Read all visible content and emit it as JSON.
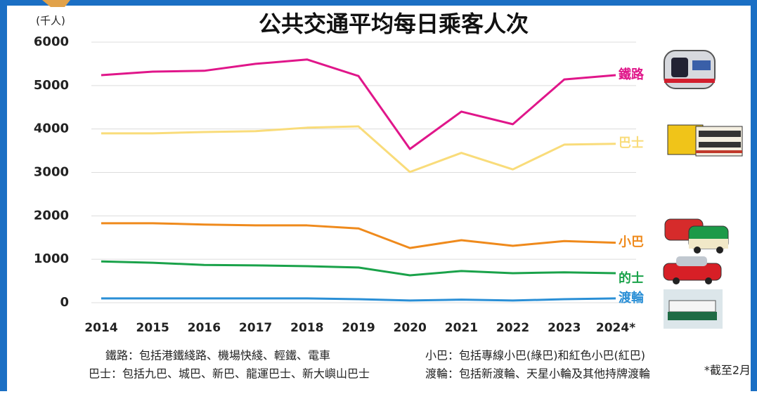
{
  "chart_data": {
    "type": "line",
    "title": "公共交通平均每日乘客人次",
    "unit": "(千人)",
    "categories": [
      "2014",
      "2015",
      "2016",
      "2017",
      "2018",
      "2019",
      "2020",
      "2021",
      "2022",
      "2023",
      "2024*"
    ],
    "series": [
      {
        "name": "鐵路",
        "color": "#e0168a",
        "values": [
          5240,
          5320,
          5340,
          5500,
          5600,
          5220,
          3540,
          4400,
          4110,
          5140,
          5240
        ]
      },
      {
        "name": "巴士",
        "color": "#f9dc7a",
        "values": [
          3900,
          3900,
          3930,
          3950,
          4030,
          4060,
          3010,
          3450,
          3070,
          3640,
          3660
        ]
      },
      {
        "name": "小巴",
        "color": "#ef8a1c",
        "values": [
          1830,
          1830,
          1800,
          1780,
          1780,
          1710,
          1260,
          1440,
          1310,
          1420,
          1380
        ]
      },
      {
        "name": "的士",
        "color": "#1aa24a",
        "values": [
          950,
          920,
          870,
          860,
          840,
          810,
          630,
          730,
          680,
          700,
          680
        ]
      },
      {
        "name": "渡輪",
        "color": "#2a8fd6",
        "values": [
          100,
          100,
          100,
          100,
          100,
          80,
          50,
          70,
          50,
          80,
          100
        ]
      }
    ],
    "ylim": [
      0,
      6000
    ],
    "yticks": [
      0,
      1000,
      2000,
      3000,
      4000,
      5000,
      6000
    ],
    "grid": true,
    "notes": [
      "鐵路：包括港鐵綫路、機場快綫、輕鐵、電車",
      "巴士：包括九巴、城巴、新巴、龍運巴士、新大嶼山巴士",
      "小巴：包括專線小巴(綠巴)和紅色小巴(紅巴)",
      "渡輪：包括新渡輪、天星小輪及其他持牌渡輪"
    ],
    "footnote": "*截至2月"
  }
}
